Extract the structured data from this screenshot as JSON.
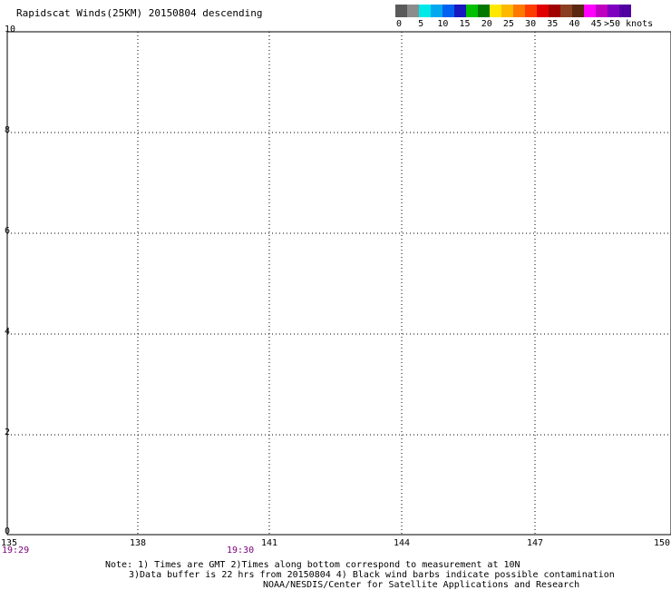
{
  "title": "Rapidscat Winds(25KM) 20150804 descending",
  "legend": {
    "colors": [
      "#5a5a5a",
      "#8c8c8c",
      "#00e8e8",
      "#00a8f0",
      "#0060f0",
      "#1818c0",
      "#00c000",
      "#007800",
      "#ffe800",
      "#ffb800",
      "#ff7800",
      "#ff3c00",
      "#e00000",
      "#a00000",
      "#8a4020",
      "#5a2810",
      "#ff00ff",
      "#c000c0",
      "#8000c0",
      "#5000a0"
    ],
    "labels": [
      "0",
      "5",
      "10",
      "15",
      "20",
      "25",
      "30",
      "35",
      "40",
      "45",
      ">50 knots"
    ]
  },
  "lat_labels": [
    "10",
    "8",
    "6",
    "4",
    "2",
    "0"
  ],
  "lon_labels": [
    "135",
    "138",
    "141",
    "144",
    "147",
    "150"
  ],
  "time_labels": [
    "19:29",
    "19:30"
  ],
  "notes": [
    "Note: 1) Times are GMT 2)Times along bottom correspond to measurement at 10N",
    "3)Data buffer is 22 hrs from 20150804 4) Black wind barbs indicate possible contamination",
    "NOAA/NESDIS/Center for Satellite Applications and Research"
  ]
}
